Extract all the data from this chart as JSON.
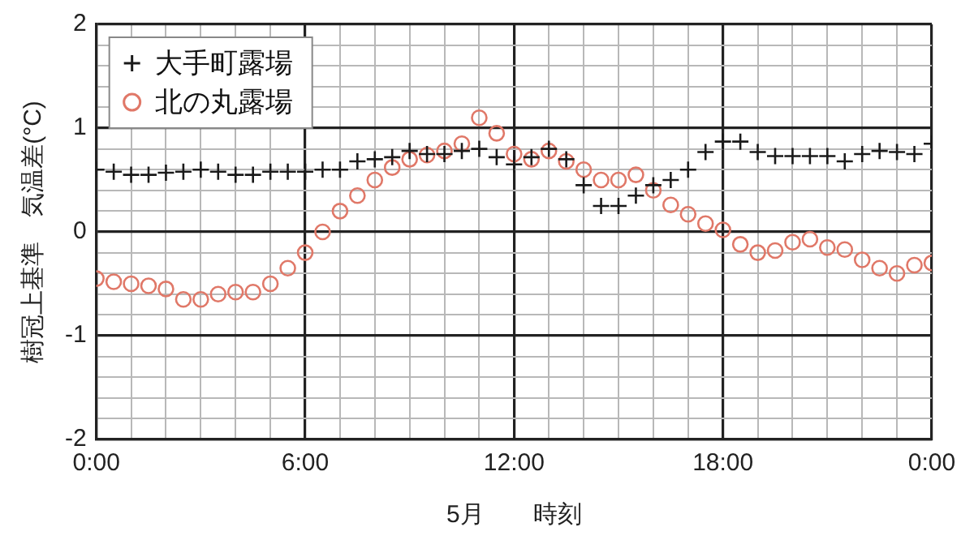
{
  "chart_data": {
    "type": "scatter",
    "xlabel": "5月　　時刻",
    "ylabel": "樹冠上基準　気温差(°C)",
    "x": [
      0,
      0.5,
      1,
      1.5,
      2,
      2.5,
      3,
      3.5,
      4,
      4.5,
      5,
      5.5,
      6,
      6.5,
      7,
      7.5,
      8,
      8.5,
      9,
      9.5,
      10,
      10.5,
      11,
      11.5,
      12,
      12.5,
      13,
      13.5,
      14,
      14.5,
      15,
      15.5,
      16,
      16.5,
      17,
      17.5,
      18,
      18.5,
      19,
      19.5,
      20,
      20.5,
      21,
      21.5,
      22,
      22.5,
      23,
      23.5,
      24
    ],
    "series": [
      {
        "name": "大手町露場",
        "color": "#1a1a1a",
        "marker": "cross",
        "values": [
          0.6,
          0.58,
          0.55,
          0.55,
          0.57,
          0.58,
          0.6,
          0.58,
          0.55,
          0.55,
          0.58,
          0.58,
          0.58,
          0.6,
          0.6,
          0.68,
          0.7,
          0.72,
          0.78,
          0.75,
          0.75,
          0.78,
          0.8,
          0.72,
          0.65,
          0.72,
          0.8,
          0.7,
          0.45,
          0.25,
          0.25,
          0.35,
          0.45,
          0.5,
          0.6,
          0.77,
          0.87,
          0.87,
          0.77,
          0.73,
          0.73,
          0.73,
          0.73,
          0.68,
          0.75,
          0.78,
          0.77,
          0.75,
          0.85
        ]
      },
      {
        "name": "北の丸露場",
        "color": "#e07868",
        "marker": "circle",
        "values": [
          -0.45,
          -0.48,
          -0.5,
          -0.52,
          -0.55,
          -0.65,
          -0.65,
          -0.6,
          -0.58,
          -0.58,
          -0.5,
          -0.35,
          -0.2,
          0.0,
          0.2,
          0.35,
          0.5,
          0.62,
          0.7,
          0.74,
          0.78,
          0.85,
          1.1,
          0.95,
          0.75,
          0.7,
          0.78,
          0.68,
          0.6,
          0.5,
          0.5,
          0.55,
          0.4,
          0.26,
          0.17,
          0.08,
          0.02,
          -0.12,
          -0.2,
          -0.18,
          -0.1,
          -0.07,
          -0.15,
          -0.17,
          -0.27,
          -0.35,
          -0.4,
          -0.32,
          -0.3
        ]
      }
    ],
    "xlim": [
      0,
      24
    ],
    "xticks": [
      {
        "value": 0,
        "label": "0:00"
      },
      {
        "value": 1,
        "label": null
      },
      {
        "value": 2,
        "label": null
      },
      {
        "value": 3,
        "label": null
      },
      {
        "value": 4,
        "label": null
      },
      {
        "value": 5,
        "label": null
      },
      {
        "value": 6,
        "label": "6:00"
      },
      {
        "value": 7,
        "label": null
      },
      {
        "value": 8,
        "label": null
      },
      {
        "value": 9,
        "label": null
      },
      {
        "value": 10,
        "label": null
      },
      {
        "value": 11,
        "label": null
      },
      {
        "value": 12,
        "label": "12:00"
      },
      {
        "value": 13,
        "label": null
      },
      {
        "value": 14,
        "label": null
      },
      {
        "value": 15,
        "label": null
      },
      {
        "value": 16,
        "label": null
      },
      {
        "value": 17,
        "label": null
      },
      {
        "value": 18,
        "label": "18:00"
      },
      {
        "value": 19,
        "label": null
      },
      {
        "value": 20,
        "label": null
      },
      {
        "value": 21,
        "label": null
      },
      {
        "value": 22,
        "label": null
      },
      {
        "value": 23,
        "label": null
      },
      {
        "value": 24,
        "label": "0:00"
      }
    ],
    "ylim": [
      -2,
      2
    ],
    "yticks": [
      -2,
      {
        "value": -1.8,
        "label": null
      },
      {
        "value": -1.6,
        "label": null
      },
      {
        "value": -1.4,
        "label": null
      },
      {
        "value": -1.2,
        "label": null
      },
      -1,
      {
        "value": -0.8,
        "label": null
      },
      {
        "value": -0.6,
        "label": null
      },
      {
        "value": -0.4,
        "label": null
      },
      {
        "value": -0.2,
        "label": null
      },
      0,
      {
        "value": 0.2,
        "label": null
      },
      {
        "value": 0.4,
        "label": null
      },
      {
        "value": 0.6,
        "label": null
      },
      {
        "value": 0.8,
        "label": null
      },
      1,
      {
        "value": 1.2,
        "label": null
      },
      {
        "value": 1.4,
        "label": null
      },
      {
        "value": 1.6,
        "label": null
      },
      {
        "value": 1.8,
        "label": null
      },
      2
    ],
    "grid": true,
    "legend": "top left"
  }
}
